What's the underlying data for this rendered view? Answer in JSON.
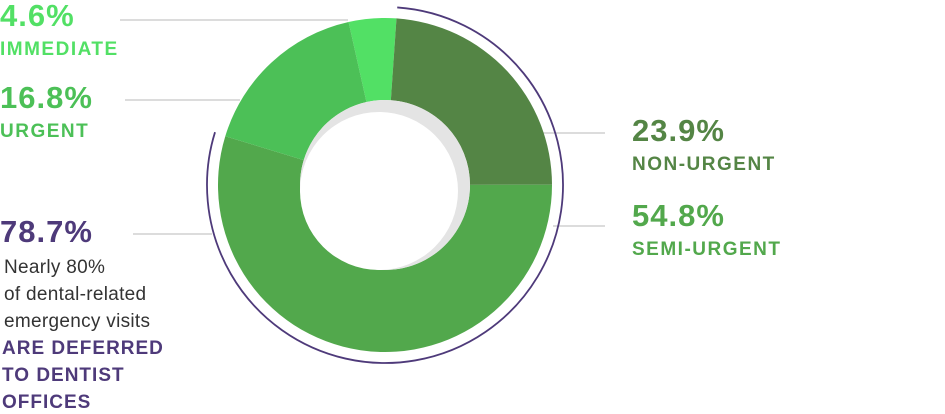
{
  "chart_data": {
    "type": "donut",
    "categories": [
      "IMMEDIATE",
      "NON-URGENT",
      "SEMI-URGENT",
      "URGENT"
    ],
    "values": [
      4.6,
      23.9,
      54.8,
      16.8
    ],
    "value_labels": [
      "4.6%",
      "23.9%",
      "54.8%",
      "16.8%"
    ],
    "colors": [
      "#52e065",
      "#548545",
      "#52a84c",
      "#4cc057"
    ],
    "summary": {
      "value": 78.7,
      "value_label": "78.7%",
      "color": "#4e3a7a",
      "text": [
        "Nearly 80%",
        "of dental-related",
        "emergency visits"
      ],
      "highlight": [
        "ARE DEFERRED",
        "TO DENTIST",
        "OFFICES"
      ]
    }
  }
}
